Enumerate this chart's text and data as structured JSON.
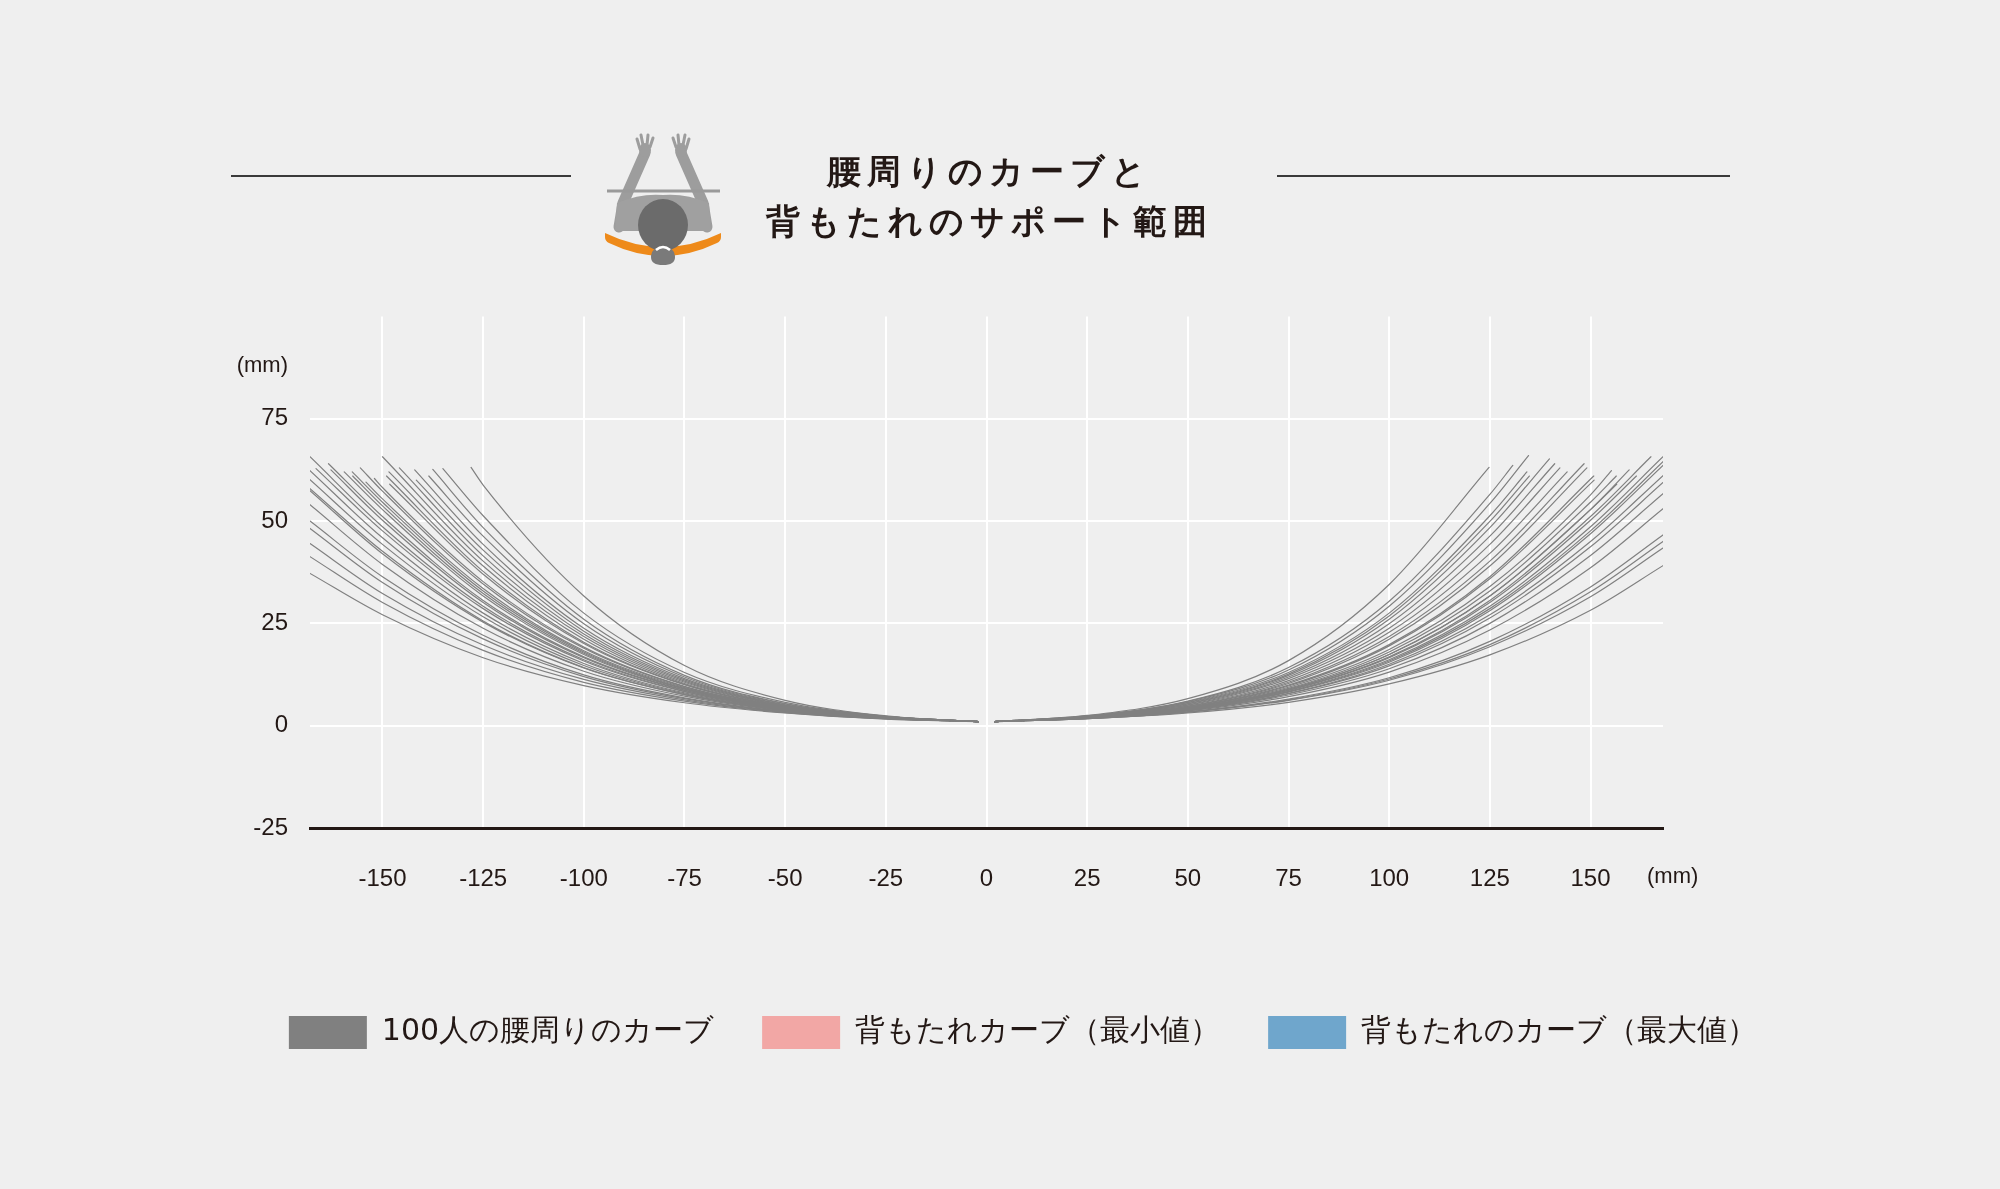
{
  "chart_data": {
    "type": "line",
    "title": "腰周りのカーブと背もたれのサポート範囲",
    "xlabel": "(mm)",
    "ylabel": "(mm)",
    "xlim": [
      -168,
      168
    ],
    "xticks": [
      -150,
      -125,
      -100,
      -75,
      -50,
      -25,
      0,
      25,
      50,
      75,
      100,
      125,
      150
    ],
    "ylim": [
      -25,
      100
    ],
    "yticks": [
      -25,
      0,
      25,
      50,
      75
    ],
    "grid": true,
    "legend": "bottom",
    "marker": "none",
    "line_style": "solid",
    "series": [
      {
        "name": "100人の腰周りのカーブ",
        "color": "#808080",
        "x": [
          -128,
          -125,
          -100,
          -75,
          -50,
          -25,
          -2
        ],
        "values": [
          63.1,
          58.8,
          31.7,
          14.7,
          6.2,
          2.4,
          1.0
        ]
      },
      {
        "color": "#808080",
        "x": [
          -135,
          -125,
          -100,
          -75,
          -50,
          -25,
          -2
        ],
        "values": [
          62.8,
          51.3,
          27.5,
          13.0,
          5.7,
          2.3,
          1.0
        ]
      },
      {
        "color": "#808080",
        "x": [
          -137.5,
          -125,
          -100,
          -75,
          -50,
          -25,
          -2
        ],
        "values": [
          62.6,
          48.4,
          26.0,
          12.3,
          5.4,
          2.3,
          1.0
        ]
      },
      {
        "color": "#808080",
        "x": [
          -138.5,
          -125,
          -100,
          -75,
          -50,
          -25,
          -2
        ],
        "values": [
          61.0,
          46.3,
          24.9,
          11.9,
          5.3,
          2.2,
          1.0
        ]
      },
      {
        "color": "#808080",
        "x": [
          -141.6,
          -125,
          -100,
          -75,
          -50,
          -25,
          -2
        ],
        "values": [
          60.0,
          42.9,
          23.1,
          11.2,
          5.0,
          2.2,
          1.0
        ]
      },
      {
        "color": "#808080",
        "x": [
          -142,
          -125,
          -100,
          -75,
          -50,
          -25,
          -2
        ],
        "values": [
          62.5,
          44.3,
          23.8,
          11.5,
          5.1,
          2.2,
          1.0
        ]
      },
      {
        "color": "#808080",
        "x": [
          -145.8,
          -125,
          -100,
          -75,
          -50,
          -25,
          -2
        ],
        "values": [
          63.0,
          41.5,
          22.4,
          10.9,
          4.9,
          2.2,
          1.0
        ]
      },
      {
        "color": "#808080",
        "x": [
          -148.4,
          -125,
          -100,
          -75,
          -50,
          -25,
          -2
        ],
        "values": [
          62.0,
          39.0,
          21.1,
          10.3,
          4.7,
          2.1,
          1.0
        ]
      },
      {
        "color": "#808080",
        "x": [
          -148.2,
          -125,
          -100,
          -75,
          -50,
          -25,
          -2
        ],
        "values": [
          59.0,
          37.0,
          20.1,
          10.0,
          4.6,
          2.1,
          1.0
        ]
      },
      {
        "color": "#808080",
        "x": [
          -150,
          -125,
          -100,
          -75,
          -50,
          -25,
          -2
        ],
        "values": [
          65.7,
          40.2,
          21.8,
          10.6,
          4.8,
          2.1,
          1.0
        ]
      },
      {
        "color": "#808080",
        "x": [
          -149,
          -125,
          -100,
          -75,
          -50,
          -25,
          -2
        ],
        "values": [
          61.0,
          37.7,
          20.4,
          10.1,
          4.6,
          2.1,
          1.0
        ]
      },
      {
        "color": "#808080",
        "x": [
          -152,
          -150,
          -125,
          -100,
          -75,
          -50,
          -25,
          -2
        ],
        "values": [
          60.4,
          58.2,
          35.2,
          19.2,
          9.6,
          4.5,
          2.1,
          1.0
        ]
      },
      {
        "color": "#808080",
        "x": [
          -155.5,
          -150,
          -125,
          -100,
          -75,
          -50,
          -25,
          -2
        ],
        "values": [
          63.0,
          57.3,
          34.6,
          18.9,
          9.5,
          4.4,
          2.0,
          1.0
        ]
      },
      {
        "color": "#808080",
        "x": [
          -154.1,
          -150,
          -125,
          -100,
          -75,
          -50,
          -25,
          -2
        ],
        "values": [
          59.5,
          55.4,
          33.5,
          18.3,
          9.3,
          4.3,
          2.0,
          1.0
        ]
      },
      {
        "color": "#808080",
        "x": [
          -157.4,
          -150,
          -125,
          -100,
          -75,
          -50,
          -25,
          -2
        ],
        "values": [
          61.0,
          53.7,
          32.3,
          17.7,
          9.0,
          4.2,
          2.0,
          1.0
        ]
      },
      {
        "color": "#808080",
        "x": [
          -157.5,
          -150,
          -125,
          -100,
          -75,
          -50,
          -25,
          -2
        ],
        "values": [
          62.0,
          54.6,
          32.9,
          18.0,
          9.1,
          4.3,
          2.0,
          1.0
        ]
      },
      {
        "color": "#808080",
        "x": [
          -159.5,
          -150,
          -125,
          -100,
          -75,
          -50,
          -25,
          -2
        ],
        "values": [
          62.0,
          52.8,
          31.7,
          17.4,
          8.9,
          4.2,
          2.0,
          1.0
        ]
      },
      {
        "color": "#808080",
        "x": [
          -162.8,
          -150,
          -125,
          -100,
          -75,
          -50,
          -25,
          -2
        ],
        "values": [
          62.5,
          50.2,
          30.1,
          16.6,
          8.6,
          4.1,
          2.0,
          1.0
        ]
      },
      {
        "color": "#808080",
        "x": [
          -163.4,
          -150,
          -125,
          -100,
          -75,
          -50,
          -25,
          -2
        ],
        "values": [
          64.0,
          51.1,
          30.6,
          16.8,
          8.7,
          4.1,
          2.0,
          1.0
        ]
      },
      {
        "color": "#808080",
        "x": [
          -168,
          -150,
          -125,
          -100,
          -75,
          -50,
          -25,
          -2
        ],
        "values": [
          65.7,
          48.6,
          29.2,
          16.1,
          8.4,
          4.0,
          1.9,
          1.0
        ]
      },
      {
        "color": "#808080",
        "x": [
          -166.5,
          -150,
          -125,
          -100,
          -75,
          -50,
          -25,
          -2
        ],
        "values": [
          62.8,
          47.6,
          28.6,
          15.8,
          8.3,
          4.0,
          1.9,
          1.0
        ]
      },
      {
        "color": "#808080",
        "x": [
          -168,
          -150,
          -125,
          -100,
          -75,
          -50,
          -25,
          -2
        ],
        "values": [
          62.3,
          45.9,
          27.5,
          15.2,
          8.0,
          3.9,
          1.9,
          1.0
        ]
      },
      {
        "color": "#808080",
        "x": [
          -168,
          -150,
          -125,
          -100,
          -75,
          -50,
          -25,
          -2
        ],
        "values": [
          60.1,
          44.3,
          26.6,
          14.7,
          7.8,
          3.8,
          1.9,
          1.0
        ]
      },
      {
        "color": "#808080",
        "x": [
          -168,
          -150,
          -125,
          -100,
          -75,
          -50,
          -25,
          -2
        ],
        "values": [
          57.9,
          42.6,
          25.6,
          14.2,
          7.6,
          3.8,
          1.9,
          1.0
        ]
      },
      {
        "color": "#808080",
        "x": [
          -168,
          -150,
          -125,
          -100,
          -75,
          -50,
          -25,
          -2
        ],
        "values": [
          57.4,
          42.0,
          25.3,
          14.1,
          7.6,
          3.7,
          1.9,
          1.0
        ]
      },
      {
        "color": "#808080",
        "x": [
          -168,
          -150,
          -125,
          -100,
          -75,
          -50,
          -25,
          -2
        ],
        "values": [
          54.0,
          39.4,
          23.8,
          13.3,
          7.2,
          3.6,
          1.8,
          1.0
        ]
      },
      {
        "color": "#808080",
        "x": [
          -168,
          -150,
          -125,
          -100,
          -75,
          -50,
          -25,
          -2
        ],
        "values": [
          50.0,
          36.4,
          22.1,
          12.4,
          6.8,
          3.5,
          1.8,
          1.0
        ]
      },
      {
        "color": "#808080",
        "x": [
          -168,
          -150,
          -125,
          -100,
          -75,
          -50,
          -25,
          -2
        ],
        "values": [
          48.2,
          35.0,
          21.2,
          12.0,
          6.6,
          3.4,
          1.8,
          1.0
        ]
      },
      {
        "color": "#808080",
        "x": [
          -168,
          -150,
          -125,
          -100,
          -75,
          -50,
          -25,
          -2
        ],
        "values": [
          44.5,
          32.3,
          19.7,
          11.3,
          6.3,
          3.3,
          1.7,
          1.0
        ]
      },
      {
        "color": "#808080",
        "x": [
          -168,
          -150,
          -125,
          -100,
          -75,
          -50,
          -25,
          -2
        ],
        "values": [
          41.3,
          30.1,
          18.4,
          10.6,
          6.0,
          3.2,
          1.7,
          1.0
        ]
      },
      {
        "color": "#808080",
        "x": [
          -168,
          -150,
          -125,
          -100,
          -75,
          -50,
          -25,
          -2
        ],
        "values": [
          37.2,
          27.1,
          16.6,
          9.8,
          5.6,
          3.1,
          1.6,
          1.0
        ]
      },
      {
        "color": "#808080",
        "x": [
          2,
          25,
          50,
          75,
          100,
          124.8
        ],
        "values": [
          1.0,
          2.5,
          6.6,
          15.9,
          34.5,
          63.1
        ]
      },
      {
        "color": "#808080",
        "x": [
          2,
          25,
          50,
          75,
          100,
          125,
          130.7
        ],
        "values": [
          1.0,
          2.4,
          6.0,
          14.2,
          30.4,
          56.5,
          63.6
        ]
      },
      {
        "color": "#808080",
        "x": [
          2,
          25,
          50,
          75,
          100,
          125,
          134.6
        ],
        "values": [
          1.0,
          2.3,
          5.9,
          13.6,
          29.2,
          54.3,
          66.0
        ]
      },
      {
        "color": "#808080",
        "x": [
          2,
          25,
          50,
          75,
          100,
          125,
          134.2
        ],
        "values": [
          1.0,
          2.3,
          5.7,
          13.0,
          27.5,
          51.3,
          62.0
        ]
      },
      {
        "color": "#808080",
        "x": [
          2,
          25,
          50,
          75,
          100,
          125,
          134.8
        ],
        "values": [
          1.0,
          2.3,
          5.6,
          12.6,
          26.8,
          49.9,
          61.0
        ]
      },
      {
        "color": "#808080",
        "x": [
          2,
          25,
          50,
          75,
          100,
          125,
          139.8
        ],
        "values": [
          1.0,
          2.3,
          5.4,
          12.3,
          26.0,
          48.4,
          65.2
        ]
      },
      {
        "color": "#808080",
        "x": [
          2,
          25,
          50,
          75,
          100,
          125,
          141.1
        ],
        "values": [
          1.0,
          2.2,
          5.3,
          11.9,
          24.9,
          46.3,
          64.0
        ]
      },
      {
        "color": "#808080",
        "x": [
          2,
          25,
          50,
          75,
          100,
          125,
          142.4
        ],
        "values": [
          1.0,
          2.2,
          5.1,
          11.5,
          23.8,
          44.3,
          63.0
        ]
      },
      {
        "color": "#808080",
        "x": [
          2,
          25,
          50,
          75,
          100,
          125,
          144.2
        ],
        "values": [
          1.0,
          2.2,
          5.0,
          11.0,
          22.8,
          42.1,
          62.0
        ]
      },
      {
        "color": "#808080",
        "x": [
          2,
          25,
          50,
          75,
          100,
          125,
          148.4
        ],
        "values": [
          1.0,
          2.1,
          4.8,
          10.6,
          21.8,
          40.2,
          64.0
        ]
      },
      {
        "color": "#808080",
        "x": [
          2,
          25,
          50,
          75,
          100,
          125,
          149.1
        ],
        "values": [
          1.0,
          2.1,
          4.7,
          10.3,
          21.1,
          39.0,
          63.0
        ]
      },
      {
        "color": "#808080",
        "x": [
          2,
          25,
          50,
          75,
          100,
          125,
          150.8
        ],
        "values": [
          1.0,
          2.1,
          4.5,
          9.9,
          19.8,
          36.4,
          61.0
        ]
      },
      {
        "color": "#808080",
        "x": [
          2,
          25,
          50,
          75,
          100,
          125,
          150.9
        ],
        "values": [
          1.0,
          2.1,
          4.5,
          9.7,
          19.5,
          35.9,
          60.0
        ]
      },
      {
        "color": "#808080",
        "x": [
          2,
          25,
          50,
          75,
          100,
          125,
          150,
          155.2
        ],
        "values": [
          1.0,
          2.0,
          4.4,
          9.4,
          18.6,
          34.0,
          56.4,
          62.3
        ]
      },
      {
        "color": "#808080",
        "x": [
          2,
          25,
          50,
          75,
          100,
          125,
          150,
          156.4
        ],
        "values": [
          1.0,
          2.0,
          4.3,
          9.1,
          18.0,
          32.9,
          54.6,
          61.0
        ]
      },
      {
        "color": "#808080",
        "x": [
          2,
          25,
          50,
          75,
          100,
          125,
          150,
          156.5
        ],
        "values": [
          1.0,
          2.0,
          4.2,
          8.9,
          17.4,
          31.7,
          52.8,
          59.0
        ]
      },
      {
        "color": "#808080",
        "x": [
          2,
          25,
          50,
          75,
          100,
          125,
          150,
          159.6
        ],
        "values": [
          1.0,
          2.0,
          4.2,
          8.9,
          17.4,
          31.7,
          52.8,
          62.5
        ]
      },
      {
        "color": "#808080",
        "x": [
          2,
          25,
          50,
          75,
          100,
          125,
          150,
          161.4
        ],
        "values": [
          1.0,
          2.0,
          4.1,
          8.6,
          16.6,
          30.1,
          50.2,
          61.0
        ]
      },
      {
        "color": "#808080",
        "x": [
          2,
          25,
          50,
          75,
          100,
          125,
          150,
          165
        ],
        "values": [
          1.0,
          2.0,
          4.1,
          8.7,
          16.8,
          30.6,
          51.1,
          65.7
        ]
      },
      {
        "color": "#808080",
        "x": [
          2,
          25,
          50,
          75,
          100,
          125,
          150,
          168
        ],
        "values": [
          1.0,
          1.9,
          4.0,
          8.4,
          16.1,
          29.2,
          48.6,
          65.7
        ]
      },
      {
        "color": "#808080",
        "x": [
          2,
          25,
          50,
          75,
          100,
          125,
          150,
          168
        ],
        "values": [
          1.0,
          1.9,
          4.0,
          8.3,
          15.8,
          28.6,
          47.6,
          64.5
        ]
      },
      {
        "color": "#808080",
        "x": [
          2,
          25,
          50,
          75,
          100,
          125,
          150,
          168
        ],
        "values": [
          1.0,
          1.9,
          4.0,
          8.2,
          15.5,
          28.1,
          46.9,
          63.6
        ]
      },
      {
        "color": "#808080",
        "x": [
          2,
          25,
          50,
          75,
          100,
          125,
          150,
          168
        ],
        "values": [
          1.0,
          1.9,
          3.9,
          7.9,
          15.0,
          27.1,
          45.0,
          61.1
        ]
      },
      {
        "color": "#808080",
        "x": [
          2,
          25,
          50,
          75,
          100,
          125,
          150,
          168
        ],
        "values": [
          1.0,
          1.9,
          3.8,
          7.8,
          14.6,
          26.3,
          43.7,
          59.4
        ]
      },
      {
        "color": "#808080",
        "x": [
          2,
          25,
          50,
          75,
          100,
          125,
          150,
          168
        ],
        "values": [
          1.0,
          1.9,
          3.7,
          7.5,
          13.9,
          25.0,
          41.6,
          56.7
        ]
      },
      {
        "color": "#808080",
        "x": [
          2,
          25,
          50,
          75,
          100,
          125,
          150,
          168
        ],
        "values": [
          1.0,
          1.8,
          3.6,
          7.1,
          13.1,
          23.4,
          38.6,
          53.0
        ]
      },
      {
        "color": "#808080",
        "x": [
          2,
          25,
          50,
          75,
          100,
          125,
          150,
          168
        ],
        "values": [
          1.0,
          1.8,
          3.4,
          6.5,
          11.7,
          20.6,
          33.9,
          46.6
        ]
      },
      {
        "color": "#808080",
        "x": [
          2,
          25,
          50,
          75,
          100,
          125,
          150,
          168
        ],
        "values": [
          1.0,
          1.7,
          3.3,
          6.3,
          11.4,
          19.8,
          32.7,
          45.0
        ]
      },
      {
        "color": "#808080",
        "x": [
          2,
          25,
          50,
          75,
          100,
          125,
          150,
          168
        ],
        "values": [
          1.0,
          1.7,
          3.3,
          6.2,
          11.1,
          19.3,
          31.5,
          43.4
        ]
      },
      {
        "color": "#808080",
        "x": [
          2,
          25,
          50,
          75,
          100,
          125,
          150,
          168
        ],
        "values": [
          1.0,
          1.7,
          3.1,
          5.7,
          10.2,
          17.3,
          28.2,
          39.1
        ]
      },
      {
        "name": "背もたれカーブ（最小値）",
        "color": "#f2a7a5"
      },
      {
        "name": "背もたれのカーブ（最大値）",
        "color": "#6fa6cc"
      }
    ]
  }
}
